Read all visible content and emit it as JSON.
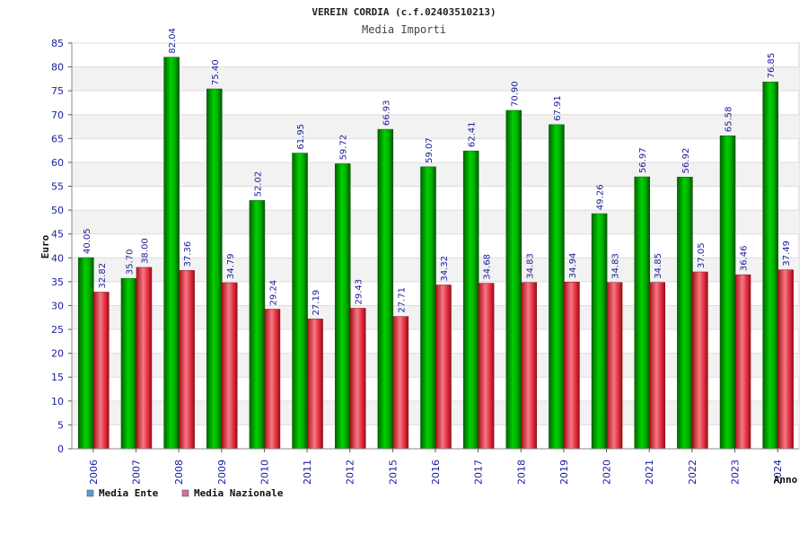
{
  "chart_data": {
    "type": "bar",
    "title": "VEREIN CORDIA (c.f.02403510213)",
    "subtitle": "Media Importi",
    "xlabel": "Anno",
    "ylabel": "Euro",
    "ylim": [
      0,
      85
    ],
    "y_ticks": [
      "0",
      "5",
      "10",
      "15",
      "20",
      "25",
      "30",
      "35",
      "40",
      "45",
      "50",
      "55",
      "60",
      "65",
      "70",
      "75",
      "80",
      "85"
    ],
    "grid": true,
    "legend_position": "bottom-left",
    "categories": [
      "2006",
      "2007",
      "2008",
      "2009",
      "2010",
      "2011",
      "2012",
      "2015",
      "2016",
      "2017",
      "2018",
      "2019",
      "2020",
      "2021",
      "2022",
      "2023",
      "2024"
    ],
    "series": [
      {
        "name": "Media Ente",
        "color": "#00a000",
        "legend_color": "#5b9bd5",
        "values": [
          40.05,
          35.7,
          82.04,
          75.4,
          52.02,
          61.95,
          59.72,
          66.93,
          59.07,
          62.41,
          70.9,
          67.91,
          49.26,
          56.97,
          56.92,
          65.58,
          76.85
        ],
        "labels": [
          "40.05",
          "35.70",
          "82.04",
          "75.40",
          "52.02",
          "61.95",
          "59.72",
          "66.93",
          "59.07",
          "62.41",
          "70.90",
          "67.91",
          "49.26",
          "56.97",
          "56.92",
          "65.58",
          "76.85"
        ]
      },
      {
        "name": "Media Nazionale",
        "color": "#e02030",
        "legend_color": "#d36fa0",
        "values": [
          32.82,
          38.0,
          37.36,
          34.79,
          29.24,
          27.19,
          29.43,
          27.71,
          34.32,
          34.68,
          34.83,
          34.94,
          34.83,
          34.85,
          37.05,
          36.46,
          37.49
        ],
        "labels": [
          "32.82",
          "38.00",
          "37.36",
          "34.79",
          "29.24",
          "27.19",
          "29.43",
          "27.71",
          "34.32",
          "34.68",
          "34.83",
          "34.94",
          "34.83",
          "34.85",
          "37.05",
          "36.46",
          "37.49"
        ]
      }
    ]
  }
}
